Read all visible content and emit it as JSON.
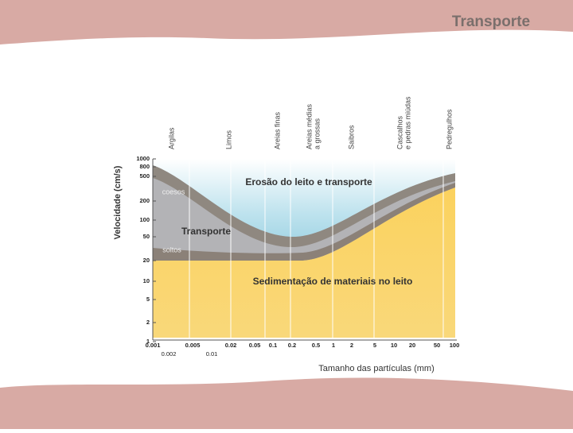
{
  "header": {
    "title": "Transporte"
  },
  "diagram": {
    "y_axis_label": "Velocidade (cm/s)",
    "x_axis_label": "Tamanho das partículas (mm)",
    "y_ticks": [
      "1000",
      "800",
      "500",
      "200",
      "100",
      "50",
      "20",
      "10",
      "5",
      "2",
      "1"
    ],
    "x_ticks": [
      "0.001",
      "0.005",
      "0.02",
      "0.05",
      "0.1",
      "0.2",
      "0.5",
      "1",
      "2",
      "5",
      "10",
      "20",
      "50",
      "100"
    ],
    "x_ticks_lower": [
      "0.002",
      "0.01"
    ],
    "classes": [
      [
        "Argilas"
      ],
      [
        "Limos"
      ],
      [
        "Areias finas"
      ],
      [
        "Areias médias",
        "a grossas"
      ],
      [
        "Saibros"
      ],
      [
        "Cascalhos",
        "e pedras miúdas"
      ],
      [
        "Pedregulhos"
      ]
    ],
    "regions": {
      "erosion": "Erosão do leito e transporte",
      "cohesive": "coesos",
      "transport": "Transporte",
      "loose": "soltos",
      "sedimentation": "Sedimentação de materiais no leito"
    }
  }
}
